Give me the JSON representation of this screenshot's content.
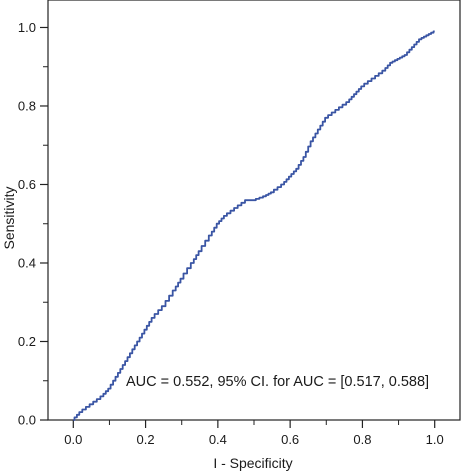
{
  "chart_data": {
    "type": "line",
    "title": "",
    "xlabel": "I - Specificity",
    "ylabel": "Sensitivity",
    "xlim": [
      -0.07,
      1.07
    ],
    "ylim": [
      0.0,
      1.07
    ],
    "xticks": [
      0.0,
      0.2,
      0.4,
      0.6,
      0.8,
      1.0
    ],
    "xtick_labels": [
      "0.0",
      "0.2",
      "0.4",
      "0.6",
      "0.8",
      "1.0"
    ],
    "yticks": [
      0.0,
      0.2,
      0.4,
      0.6,
      0.8,
      1.0
    ],
    "ytick_labels": [
      "0.0",
      "0.2",
      "0.4",
      "0.6",
      "0.8",
      "1.0"
    ],
    "grid": false,
    "annotation": "AUC = 0.552, 95% CI. for AUC = [0.517, 0.588]",
    "line_color": "#3a55a4",
    "series": [
      {
        "x": [
          0.0,
          0.02,
          0.05,
          0.08,
          0.1,
          0.12,
          0.14,
          0.16,
          0.18,
          0.2,
          0.22,
          0.25,
          0.28,
          0.3,
          0.33,
          0.35,
          0.38,
          0.4,
          0.42,
          0.45,
          0.48,
          0.5,
          0.53,
          0.55,
          0.58,
          0.6,
          0.62,
          0.64,
          0.66,
          0.68,
          0.7,
          0.73,
          0.76,
          0.78,
          0.8,
          0.83,
          0.86,
          0.88,
          0.9,
          0.92,
          0.94,
          0.96,
          0.98,
          1.0
        ],
        "y": [
          0.0,
          0.02,
          0.04,
          0.06,
          0.08,
          0.11,
          0.14,
          0.17,
          0.2,
          0.23,
          0.26,
          0.29,
          0.33,
          0.36,
          0.4,
          0.43,
          0.47,
          0.5,
          0.52,
          0.54,
          0.56,
          0.56,
          0.57,
          0.58,
          0.6,
          0.62,
          0.64,
          0.67,
          0.71,
          0.74,
          0.77,
          0.79,
          0.81,
          0.83,
          0.85,
          0.87,
          0.89,
          0.91,
          0.92,
          0.93,
          0.95,
          0.97,
          0.98,
          0.99
        ]
      }
    ]
  }
}
